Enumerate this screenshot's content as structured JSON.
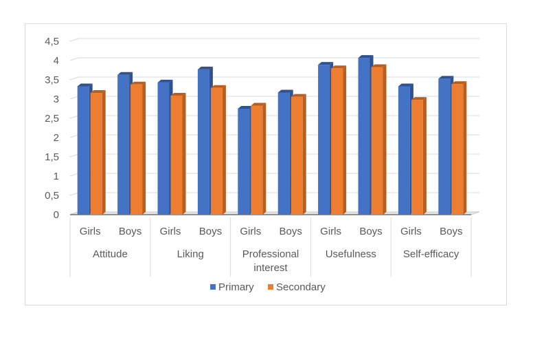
{
  "chart_data": {
    "type": "bar",
    "title": "",
    "xlabel": "",
    "ylabel": "",
    "ylim": [
      0,
      4.5
    ],
    "yticks": [
      "0",
      "0,5",
      "1",
      "1,5",
      "2",
      "2,5",
      "3",
      "3,5",
      "4",
      "4,5"
    ],
    "ytick_values": [
      0,
      0.5,
      1,
      1.5,
      2,
      2.5,
      3,
      3.5,
      4,
      4.5
    ],
    "groups": [
      {
        "label": "Attitude",
        "label_lines": [
          "Attitude"
        ],
        "subcategories": [
          "Girls",
          "Boys"
        ]
      },
      {
        "label": "Liking",
        "label_lines": [
          "Liking"
        ],
        "subcategories": [
          "Girls",
          "Boys"
        ]
      },
      {
        "label": "Professional interest",
        "label_lines": [
          "Professional",
          "interest"
        ],
        "subcategories": [
          "Girls",
          "Boys"
        ]
      },
      {
        "label": "Usefulness",
        "label_lines": [
          "Usefulness"
        ],
        "subcategories": [
          "Girls",
          "Boys"
        ]
      },
      {
        "label": "Self-efficacy",
        "label_lines": [
          "Self-efficacy"
        ],
        "subcategories": [
          "Girls",
          "Boys"
        ]
      }
    ],
    "categories": [
      "Attitude Girls",
      "Attitude Boys",
      "Liking Girls",
      "Liking Boys",
      "Professional interest Girls",
      "Professional interest Boys",
      "Usefulness Girls",
      "Usefulness Boys",
      "Self-efficacy Girls",
      "Self-efficacy Boys"
    ],
    "series": [
      {
        "name": "Primary",
        "color": "#4472c4",
        "side_color": "#2f528f",
        "values": [
          3.33,
          3.63,
          3.43,
          3.77,
          2.75,
          3.17,
          3.89,
          4.07,
          3.33,
          3.53
        ]
      },
      {
        "name": "Secondary",
        "color": "#ed7d31",
        "side_color": "#b85f1f",
        "values": [
          3.16,
          3.38,
          3.09,
          3.29,
          2.83,
          3.06,
          3.8,
          3.83,
          2.98,
          3.39
        ]
      }
    ],
    "legend_position": "bottom",
    "grid": true
  }
}
